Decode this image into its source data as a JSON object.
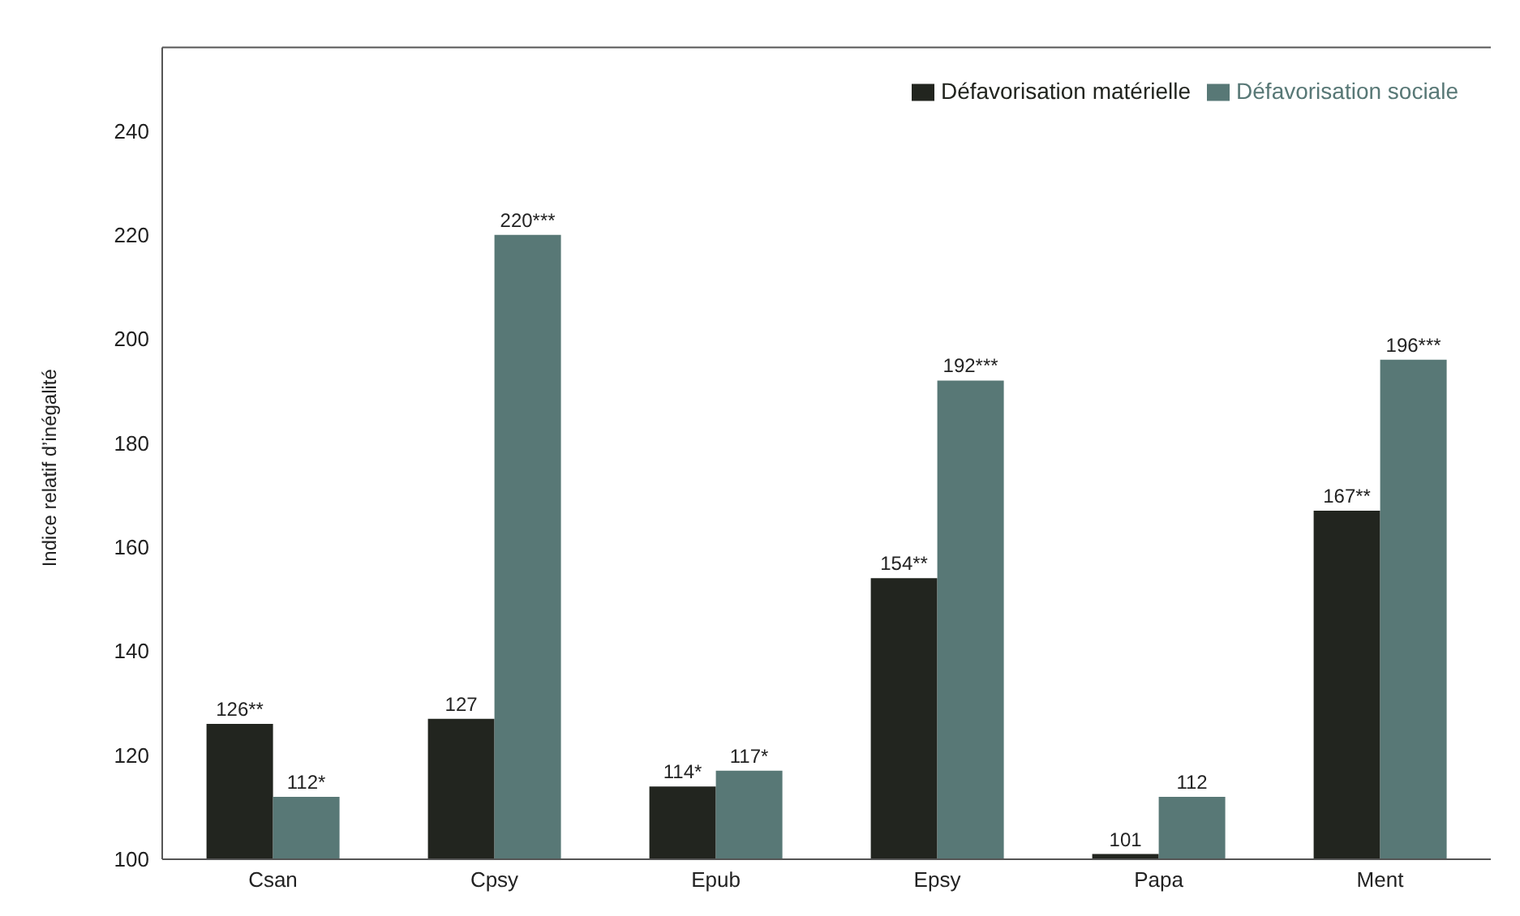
{
  "chart_data": {
    "type": "bar",
    "ylabel": "Indice relatif d’inégalité",
    "categories": [
      "Csan",
      "Cpsy",
      "Epub",
      "Epsy",
      "Papa",
      "Ment"
    ],
    "series": [
      {
        "name": "Défavorisation matérielle",
        "color": "#22251f",
        "values": [
          126,
          127,
          114,
          154,
          101,
          167
        ],
        "value_labels": [
          "126**",
          "127",
          "114*",
          "154**",
          "101",
          "167**"
        ]
      },
      {
        "name": "Défavorisation sociale",
        "color": "#587876",
        "values": [
          112,
          220,
          117,
          192,
          112,
          196
        ],
        "value_labels": [
          "112*",
          "220***",
          "117*",
          "192***",
          "112",
          "196***"
        ]
      }
    ],
    "ylim": [
      100,
      256
    ],
    "yticks": [
      100,
      120,
      140,
      160,
      180,
      200,
      220,
      240
    ],
    "grid": false,
    "legend": "top right"
  }
}
